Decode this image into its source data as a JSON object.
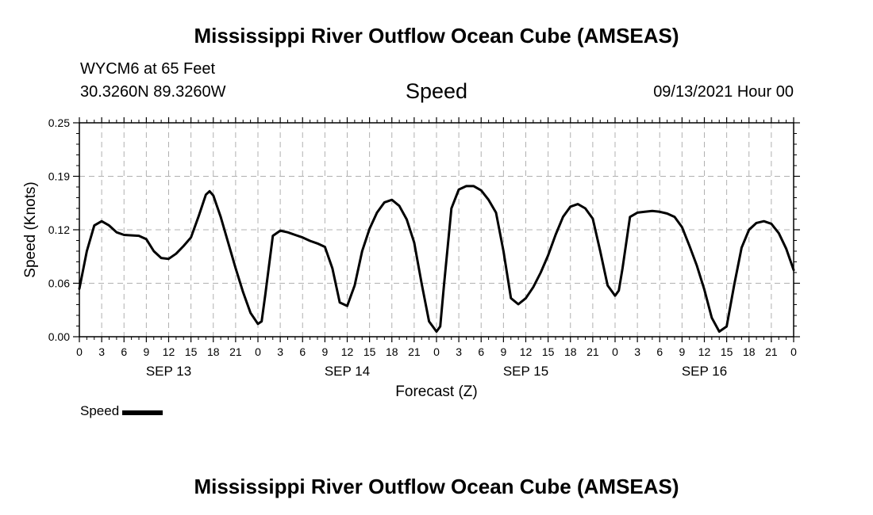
{
  "title": "Mississippi River Outflow Ocean Cube (AMSEAS)",
  "footer_title": "Mississippi River Outflow Ocean Cube (AMSEAS)",
  "station": {
    "name": "WYCM6 at 65 Feet",
    "coords": "30.3260N  89.3260W"
  },
  "run_time": "09/13/2021 Hour 00",
  "legend_label": "Speed",
  "chart_data": {
    "type": "line",
    "title": "Speed",
    "xlabel": "Forecast (Z)",
    "ylabel": "Speed (Knots)",
    "ylim": [
      0,
      0.25
    ],
    "yticks": [
      "0.00",
      "0.06",
      "0.12",
      "0.19",
      "0.25"
    ],
    "xlim_hours": [
      0,
      96
    ],
    "xtick_labels": [
      "0",
      "3",
      "6",
      "9",
      "12",
      "15",
      "18",
      "21",
      "0",
      "3",
      "6",
      "9",
      "12",
      "15",
      "18",
      "21",
      "0",
      "3",
      "6",
      "9",
      "12",
      "15",
      "18",
      "21",
      "0",
      "3",
      "6",
      "9",
      "12",
      "15",
      "18",
      "21",
      "0"
    ],
    "day_labels": [
      "SEP 13",
      "SEP 14",
      "SEP 15",
      "SEP 16"
    ],
    "grid": true,
    "series": [
      {
        "name": "Speed",
        "color": "#000000",
        "x": [
          0,
          1,
          2,
          3,
          4,
          5,
          6,
          8,
          9,
          10,
          11,
          12,
          13,
          14,
          15,
          16,
          17,
          17.5,
          18,
          19,
          20,
          21,
          22,
          23,
          24,
          24.5,
          25,
          26,
          27,
          28,
          29,
          30,
          31,
          32,
          33,
          34,
          35,
          36,
          37,
          38,
          39,
          40,
          41,
          42,
          43,
          44,
          45,
          46,
          47,
          48,
          48.5,
          49,
          50,
          51,
          52,
          53,
          54,
          55,
          56,
          57,
          58,
          59,
          60,
          61,
          62,
          63,
          64,
          65,
          66,
          67,
          68,
          69,
          70,
          71,
          72,
          72.5,
          73,
          74,
          75,
          76,
          77,
          78,
          79,
          80,
          81,
          82,
          83,
          84,
          85,
          86,
          87,
          88,
          89,
          90,
          91,
          92,
          93,
          94,
          95,
          96
        ],
        "values": [
          0.056,
          0.1,
          0.13,
          0.135,
          0.13,
          0.122,
          0.119,
          0.118,
          0.114,
          0.1,
          0.092,
          0.091,
          0.097,
          0.106,
          0.116,
          0.14,
          0.166,
          0.17,
          0.165,
          0.14,
          0.11,
          0.08,
          0.052,
          0.028,
          0.015,
          0.018,
          0.05,
          0.118,
          0.124,
          0.122,
          0.119,
          0.116,
          0.112,
          0.109,
          0.105,
          0.08,
          0.04,
          0.036,
          0.06,
          0.1,
          0.126,
          0.145,
          0.157,
          0.16,
          0.153,
          0.137,
          0.11,
          0.062,
          0.018,
          0.006,
          0.012,
          0.06,
          0.15,
          0.172,
          0.176,
          0.176,
          0.171,
          0.16,
          0.145,
          0.1,
          0.045,
          0.038,
          0.045,
          0.058,
          0.075,
          0.095,
          0.119,
          0.14,
          0.152,
          0.155,
          0.15,
          0.138,
          0.1,
          0.06,
          0.048,
          0.054,
          0.08,
          0.14,
          0.145,
          0.146,
          0.147,
          0.146,
          0.144,
          0.14,
          0.128,
          0.106,
          0.083,
          0.055,
          0.022,
          0.006,
          0.012,
          0.06,
          0.104,
          0.125,
          0.133,
          0.135,
          0.132,
          0.121,
          0.103,
          0.078
        ]
      }
    ]
  }
}
